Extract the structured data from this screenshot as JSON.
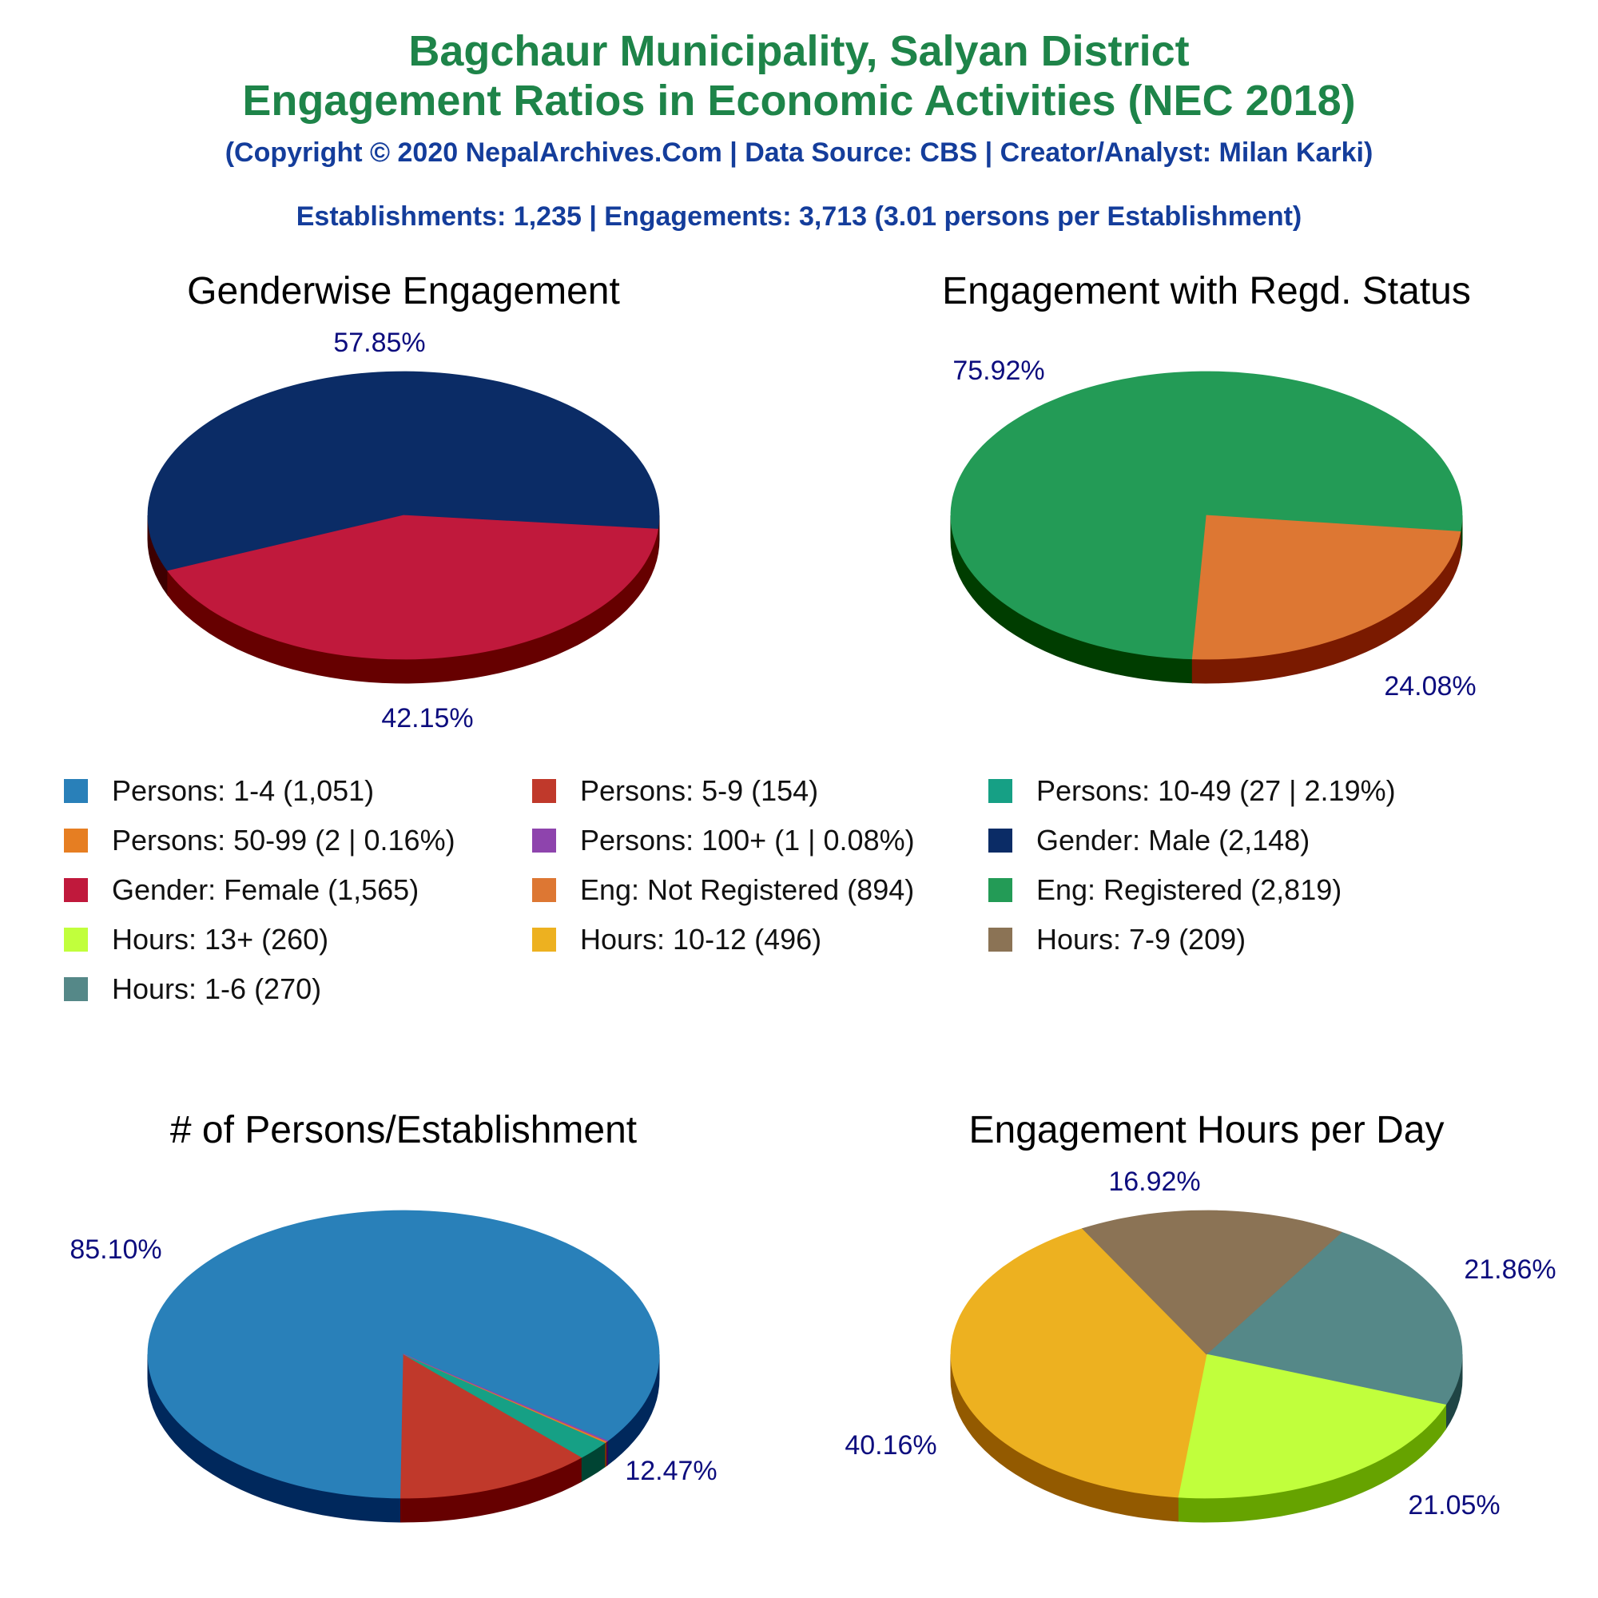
{
  "header": {
    "title_line1": "Bagchaur Municipality, Salyan District",
    "title_line2": "Engagement Ratios in Economic Activities (NEC 2018)",
    "copyright": "(Copyright © 2020 NepalArchives.Com | Data Source: CBS | Creator/Analyst: Milan Karki)",
    "summary": "Establishments: 1,235 | Engagements: 3,713 (3.01 persons per Establishment)"
  },
  "legend": [
    {
      "label": "Persons: 1-4 (1,051)",
      "color": "#2980b9"
    },
    {
      "label": "Persons: 5-9 (154)",
      "color": "#c0392b"
    },
    {
      "label": "Persons: 10-49 (27 | 2.19%)",
      "color": "#16a085"
    },
    {
      "label": "Persons: 50-99 (2 | 0.16%)",
      "color": "#e67e22"
    },
    {
      "label": "Persons: 100+ (1 | 0.08%)",
      "color": "#8e44ad"
    },
    {
      "label": "Gender: Male (2,148)",
      "color": "#0b2c66"
    },
    {
      "label": "Gender: Female (1,565)",
      "color": "#c0193c"
    },
    {
      "label": "Eng: Not Registered (894)",
      "color": "#dd7733"
    },
    {
      "label": "Eng: Registered (2,819)",
      "color": "#239b56"
    },
    {
      "label": "Hours: 13+ (260)",
      "color": "#c1ff3c"
    },
    {
      "label": "Hours: 10-12 (496)",
      "color": "#edb120"
    },
    {
      "label": "Hours: 7-9 (209)",
      "color": "#8b7355"
    },
    {
      "label": "Hours: 1-6 (270)",
      "color": "#558888"
    }
  ],
  "chart_data": [
    {
      "type": "pie",
      "title": "Genderwise Engagement",
      "slices": [
        {
          "label": "Gender: Male",
          "value": 2148,
          "percent_label": "57.85%",
          "color": "#0b2c66",
          "side": "#3d0000"
        },
        {
          "label": "Gender: Female",
          "value": 1565,
          "percent_label": "42.15%",
          "color": "#c0193c",
          "side": "#660000"
        }
      ]
    },
    {
      "type": "pie",
      "title": "Engagement with Regd. Status",
      "slices": [
        {
          "label": "Eng: Registered",
          "value": 2819,
          "percent_label": "75.92%",
          "color": "#239b56",
          "side": "#003d00"
        },
        {
          "label": "Eng: Not Registered",
          "value": 894,
          "percent_label": "24.08%",
          "color": "#dd7733",
          "side": "#7a1a00"
        }
      ]
    },
    {
      "type": "pie",
      "title": "# of Persons/Establishment",
      "slices": [
        {
          "label": "Persons: 1-4",
          "value": 1051,
          "percent_label": "85.10%",
          "color": "#2980b9",
          "side": "#00285c"
        },
        {
          "label": "Persons: 5-9",
          "value": 154,
          "percent_label": "12.47%",
          "color": "#c0392b",
          "side": "#660000"
        },
        {
          "label": "Persons: 10-49",
          "value": 27,
          "percent_label": "",
          "color": "#16a085",
          "side": "#004433"
        },
        {
          "label": "Persons: 50-99",
          "value": 2,
          "percent_label": "",
          "color": "#e67e22",
          "side": "#7a3300"
        },
        {
          "label": "Persons: 100+",
          "value": 1,
          "percent_label": "",
          "color": "#8e44ad",
          "side": "#3d0055"
        }
      ]
    },
    {
      "type": "pie",
      "title": "Engagement Hours per Day",
      "slices": [
        {
          "label": "Hours: 1-6",
          "value": 270,
          "percent_label": "21.86%",
          "color": "#558888",
          "side": "#1f4444"
        },
        {
          "label": "Hours: 13+",
          "value": 260,
          "percent_label": "21.05%",
          "color": "#c1ff3c",
          "side": "#66a300"
        },
        {
          "label": "Hours: 10-12",
          "value": 496,
          "percent_label": "40.16%",
          "color": "#edb120",
          "side": "#935a00"
        },
        {
          "label": "Hours: 7-9",
          "value": 209,
          "percent_label": "16.92%",
          "color": "#8b7355",
          "side": "#3d2a10"
        }
      ]
    }
  ]
}
